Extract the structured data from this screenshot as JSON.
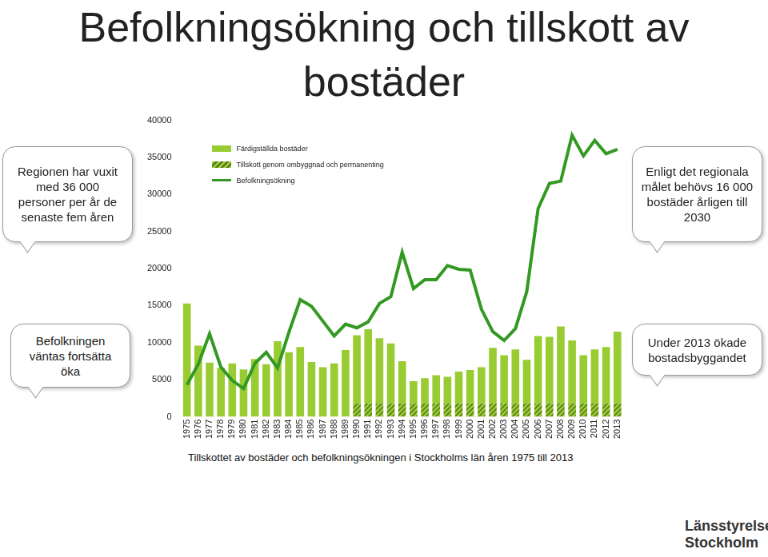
{
  "chart_data": {
    "type": "bar",
    "title": "Befolkningsökning och tillskott av bostäder",
    "subtitle": "Tillskottet av bostäder och befolkningsökningen i Stockholms län åren 1975 till 2013",
    "annotations": [
      "Regionen har vuxit med 36 000 personer per år de senaste fem åren",
      "Enligt det regionala målet behövs 16 000 bostäder årligen till 2030",
      "Befolkningen väntas fortsätta öka",
      "Under 2013 ökade bostadsbyggandet",
      "Länsstyrelsen Stockholm"
    ],
    "categories": [
      "1975",
      "1976",
      "1977",
      "1978",
      "1979",
      "1980",
      "1981",
      "1982",
      "1983",
      "1984",
      "1985",
      "1986",
      "1987",
      "1988",
      "1989",
      "1990",
      "1991",
      "1992",
      "1993",
      "1994",
      "1995",
      "1996",
      "1997",
      "1998",
      "1999",
      "2000",
      "2001",
      "2002",
      "2003",
      "2004",
      "2005",
      "2006",
      "2007",
      "2008",
      "2009",
      "2010",
      "2011",
      "2012",
      "2013"
    ],
    "series": [
      {
        "name": "Färdigställda bostäder",
        "type": "bar",
        "color": "#99cc33",
        "values": [
          15300,
          9600,
          7300,
          6600,
          7200,
          6400,
          7800,
          7100,
          10200,
          8700,
          9400,
          7400,
          6700,
          7200,
          9000,
          9200,
          10000,
          8800,
          8100,
          5700,
          3000,
          3400,
          3800,
          3600,
          4300,
          4500,
          4900,
          7500,
          6500,
          7300,
          5900,
          9100,
          9000,
          10400,
          8500,
          6500,
          7300,
          7600,
          9700
        ]
      },
      {
        "name": "Tillskott genom ombyggnad och permanenting",
        "type": "bar",
        "color": "#99cc33",
        "values": [
          null,
          null,
          null,
          null,
          null,
          null,
          null,
          null,
          null,
          null,
          null,
          null,
          null,
          null,
          null,
          1800,
          1800,
          1800,
          1800,
          1800,
          1800,
          1800,
          1800,
          1800,
          1800,
          1800,
          1800,
          1800,
          1800,
          1800,
          1800,
          1800,
          1800,
          1800,
          1800,
          1800,
          1800,
          1800,
          1800
        ]
      },
      {
        "name": "Befolkningsökning",
        "type": "line",
        "color": "#339922",
        "values": [
          4300,
          7100,
          11200,
          6700,
          4900,
          3800,
          7200,
          8700,
          6600,
          11400,
          15800,
          14900,
          12900,
          10900,
          12500,
          12000,
          12800,
          15300,
          16200,
          22200,
          17300,
          18500,
          18500,
          20400,
          19900,
          19800,
          14500,
          11500,
          10300,
          11900,
          16900,
          28100,
          31500,
          31800,
          38000,
          35200,
          37300,
          35500,
          36100
        ]
      }
    ],
    "stacked": true,
    "ylim": [
      0,
      40000
    ],
    "yticks": [
      0,
      5000,
      10000,
      15000,
      20000,
      25000,
      30000,
      35000,
      40000
    ],
    "grid": false,
    "legend": "top-left"
  }
}
